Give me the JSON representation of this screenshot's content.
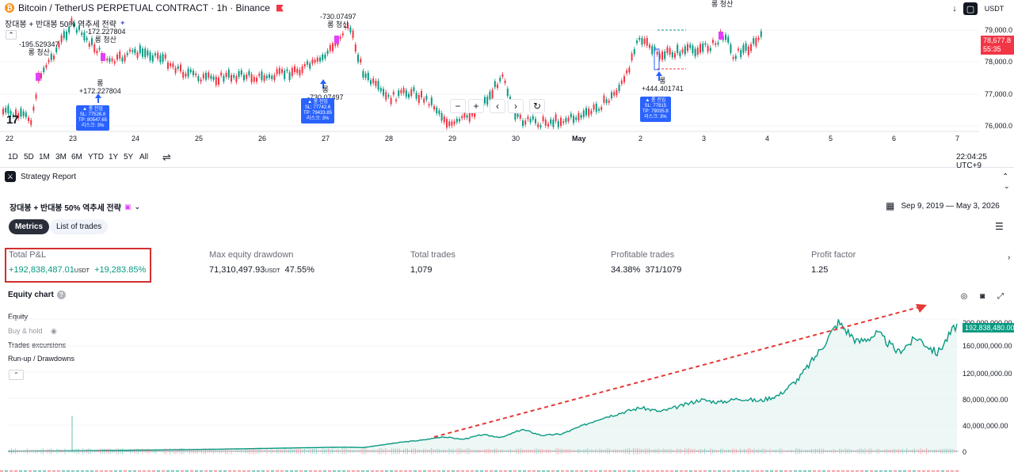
{
  "chart": {
    "title": "Bitcoin / TetherUS PERPETUAL CONTRACT · 1h · Binance",
    "strategy_legend": "장대봉 + 반대봉 50% 역추세 전략",
    "currency": "USDT",
    "price_label": "78,677.8",
    "countdown": "55:35",
    "yaxis": [
      "79,000.0",
      "78,000.0",
      "77,000.0",
      "76,000.0"
    ],
    "xaxis": [
      "22",
      "23",
      "24",
      "25",
      "26",
      "27",
      "28",
      "29",
      "30",
      "May",
      "2",
      "3",
      "4",
      "5",
      "6",
      "7"
    ],
    "annotations": [
      {
        "line1": "-195.529347",
        "line2": "롱 청산"
      },
      {
        "line1": "-172.227804",
        "line2": "롱 청산"
      },
      {
        "line1": "롱",
        "line2": "+172.227804"
      },
      {
        "line1": "-730.07497",
        "line2": "롱 청산"
      },
      {
        "line1": "롱",
        "line2": "-730.07497"
      },
      {
        "line1": "롱",
        "line2": "+444.401741"
      },
      {
        "line1": "롱 청산",
        "line2": ""
      }
    ],
    "tips": [
      {
        "l1": "▲ 롱 진입",
        "l2": "SL: 77526.8",
        "l3": "TP: 80547.65",
        "l4": "리스크: 3%"
      },
      {
        "l1": "▲ 롱 진입",
        "l2": "SL: 77742.6",
        "l3": "TP: 79433.85",
        "l4": "리스크: 3%"
      },
      {
        "l1": "▲ 롱 진입",
        "l2": "SL: 77815",
        "l3": "TP: 79035.8",
        "l4": "리스크: 3%"
      }
    ]
  },
  "range_bar": {
    "ranges": [
      "1D",
      "5D",
      "1M",
      "3M",
      "6M",
      "YTD",
      "1Y",
      "5Y",
      "All"
    ],
    "time": "22:04:25 UTC+9"
  },
  "report": {
    "panel_title": "Strategy Report",
    "strategy_name": "장대봉 + 반대봉 50% 역추세 전략",
    "date_range": "Sep 9, 2019 — May 3, 2026",
    "tabs": [
      "Metrics",
      "List of trades"
    ],
    "metrics": {
      "total_pnl": {
        "label": "Total P&L",
        "value": "+192,838,487.01",
        "unit": "USDT",
        "pct": "+19,283.85%"
      },
      "max_dd": {
        "label": "Max equity drawdown",
        "value": "71,310,497.93",
        "unit": "USDT",
        "pct": "47.55%"
      },
      "total_trades": {
        "label": "Total trades",
        "value": "1,079"
      },
      "profitable": {
        "label": "Profitable trades",
        "value": "34.38%",
        "ratio": "371/1079"
      },
      "profit_factor": {
        "label": "Profit factor",
        "value": "1.25"
      }
    },
    "equity_chart": {
      "title": "Equity chart",
      "legend": [
        "Equity",
        "Buy & hold",
        "Trades excursions",
        "Run-up / Drawdowns"
      ],
      "yaxis": [
        "200,000,000.00",
        "160,000,000.00",
        "120,000,000.00",
        "80,000,000.00",
        "40,000,000.00",
        "0"
      ],
      "last_value": "192,838,480.00"
    }
  },
  "chart_data": {
    "type": "line",
    "series": [
      {
        "name": "Equity",
        "color": "#089981"
      }
    ],
    "ylim": [
      0,
      200000000
    ],
    "values": [
      0,
      200000,
      400000,
      700000,
      900000,
      1200000,
      1500000,
      1800000,
      2100000,
      2500000,
      2900000,
      3300000,
      3800000,
      4300000,
      4800000,
      5300000,
      5800000,
      6200000,
      5600000,
      10000000,
      14000000,
      17000000,
      22000000,
      18000000,
      25000000,
      21000000,
      33000000,
      24000000,
      26000000,
      38000000,
      50000000,
      58000000,
      66000000,
      60000000,
      68000000,
      78000000,
      74000000,
      80000000,
      76000000,
      85000000,
      110000000,
      150000000,
      195000000,
      165000000,
      178000000,
      150000000,
      172000000,
      148000000,
      192838480
    ]
  }
}
